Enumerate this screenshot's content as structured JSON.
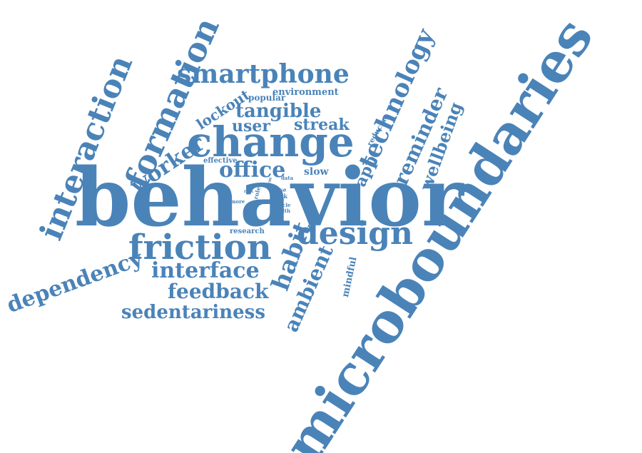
{
  "word_color": "#4a83b8",
  "words": [
    {
      "id": "microboundaries",
      "text": "microboundaries"
    },
    {
      "id": "behavior",
      "text": "behavior"
    },
    {
      "id": "change",
      "text": "change"
    },
    {
      "id": "friction",
      "text": "friction"
    },
    {
      "id": "design",
      "text": "design"
    },
    {
      "id": "formation",
      "text": "formation"
    },
    {
      "id": "interaction",
      "text": "interaction"
    },
    {
      "id": "smartphone",
      "text": "smartphone"
    },
    {
      "id": "technology",
      "text": "technology"
    },
    {
      "id": "dependency",
      "text": "dependency"
    },
    {
      "id": "interface",
      "text": "interface"
    },
    {
      "id": "feedback",
      "text": "feedback"
    },
    {
      "id": "sedentariness",
      "text": "sedentariness"
    },
    {
      "id": "habit",
      "text": "habit"
    },
    {
      "id": "ambient",
      "text": "ambient"
    },
    {
      "id": "reminder",
      "text": "reminder"
    },
    {
      "id": "wellbeing",
      "text": "wellbeing"
    },
    {
      "id": "worker",
      "text": "worker"
    },
    {
      "id": "office",
      "text": "office"
    },
    {
      "id": "tangible",
      "text": "tangible"
    },
    {
      "id": "streak",
      "text": "streak"
    },
    {
      "id": "user",
      "text": "user"
    },
    {
      "id": "lockout",
      "text": "lockout"
    },
    {
      "id": "app",
      "text": "app"
    },
    {
      "id": "environment",
      "text": "environment"
    },
    {
      "id": "popular",
      "text": "popular"
    },
    {
      "id": "slow",
      "text": "slow"
    },
    {
      "id": "mindful",
      "text": "mindful"
    },
    {
      "id": "effective",
      "text": "effective"
    },
    {
      "id": "reducing",
      "text": "reducing"
    },
    {
      "id": "research",
      "text": "research"
    },
    {
      "id": "data",
      "text": "data"
    },
    {
      "id": "case",
      "text": "case"
    },
    {
      "id": "kick",
      "text": "kick"
    },
    {
      "id": "role",
      "text": "role"
    },
    {
      "id": "article",
      "text": "article"
    },
    {
      "id": "health",
      "text": "health"
    },
    {
      "id": "more",
      "text": "more"
    },
    {
      "id": "risk",
      "text": "risk"
    },
    {
      "id": "term",
      "text": "term"
    }
  ]
}
